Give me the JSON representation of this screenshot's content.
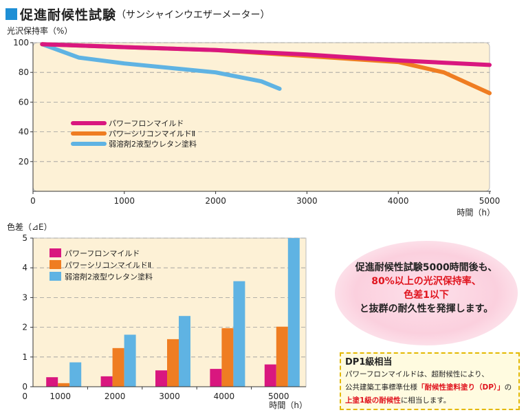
{
  "title": {
    "main": "促進耐候性試験",
    "sub": "（サンシャインウエザーメーター）"
  },
  "colors": {
    "pink": "#d9177f",
    "orange": "#ef7d22",
    "blue": "#5fb3e3",
    "bg": "#fdf1d6",
    "accent": "#1e8fd5"
  },
  "chart_data": [
    {
      "type": "line",
      "ylabel": "光沢保持率（%）",
      "xlabel": "時間（h）",
      "xlim": [
        0,
        5000
      ],
      "ylim": [
        0,
        100
      ],
      "xticks": [
        0,
        1000,
        2000,
        3000,
        4000,
        5000
      ],
      "yticks": [
        20,
        40,
        60,
        80,
        100
      ],
      "grid": "horizontal dashed",
      "legend": "center-left",
      "series": [
        {
          "name": "パワーフロンマイルド",
          "color": "#d9177f",
          "x": [
            100,
            1000,
            2000,
            3000,
            4000,
            5000
          ],
          "y": [
            99,
            97,
            95,
            92,
            88,
            85
          ]
        },
        {
          "name": "パワーシリコンマイルドⅡ",
          "color": "#ef7d22",
          "x": [
            100,
            1000,
            2000,
            3000,
            4000,
            4500,
            5000
          ],
          "y": [
            99,
            97,
            95,
            91,
            87,
            80,
            66
          ]
        },
        {
          "name": "弱溶剤2液型ウレタン塗料",
          "color": "#5fb3e3",
          "x": [
            100,
            500,
            1000,
            1500,
            2000,
            2500,
            2700
          ],
          "y": [
            99,
            90,
            86,
            83,
            80,
            74,
            69
          ]
        }
      ]
    },
    {
      "type": "bar",
      "ylabel": "色差（⊿E）",
      "xlabel": "時間（h）",
      "categories": [
        "1000",
        "2000",
        "3000",
        "4000",
        "5000"
      ],
      "ylim": [
        0,
        5
      ],
      "yticks": [
        0,
        1,
        2,
        3,
        4,
        5
      ],
      "grid": "horizontal dashed",
      "legend": "top-left",
      "series": [
        {
          "name": "パワーフロンマイルド",
          "color": "#d9177f",
          "values": [
            0.32,
            0.35,
            0.55,
            0.6,
            0.75
          ]
        },
        {
          "name": "パワーシリコンマイルドⅡ",
          "color": "#ef7d22",
          "values": [
            0.12,
            1.3,
            1.6,
            1.97,
            2.02
          ]
        },
        {
          "name": "弱溶剤2液型ウレタン塗料",
          "color": "#5fb3e3",
          "values": [
            0.82,
            1.75,
            2.38,
            3.55,
            5.0
          ]
        }
      ]
    }
  ],
  "callout": {
    "line1": "促進耐候性試験5000時間後も、",
    "line2": "80%以上の光沢保持率、",
    "line3": "色差1以下",
    "line4": "と抜群の耐久性を発揮します。"
  },
  "dp": {
    "title": "DP1級相当",
    "l1": "パワーフロンマイルドは、超耐候性により、",
    "l2a": "公共建築工事標準仕様",
    "l2b": "「耐候性塗料塗り（DP）」",
    "l2c": "の",
    "l3a": "上塗1級の耐候性",
    "l3b": "に相当します。"
  }
}
